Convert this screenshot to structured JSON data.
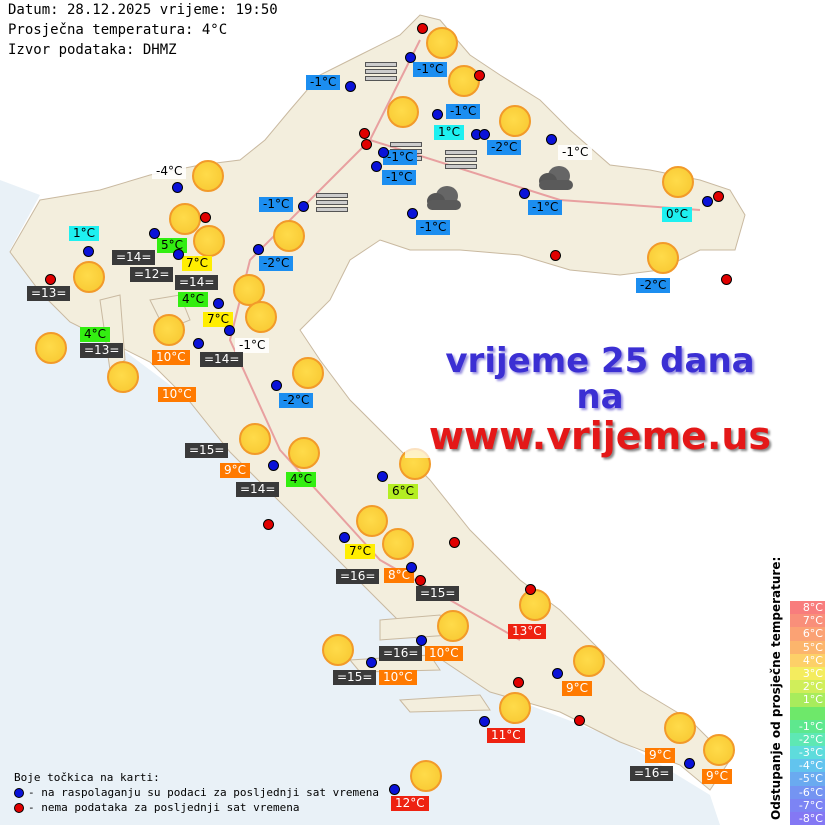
{
  "header": {
    "date_line": "Datum: 28.12.2025 vrijeme: 19:50",
    "avg_line": "Prosječna temperatura: 4°C",
    "source_line": "Izvor podataka: DHMZ"
  },
  "ad": {
    "line1": "vrijeme 25 dana",
    "line2": "na",
    "line3": "www.vrijeme.us"
  },
  "legend": {
    "title": "Boje točkica na karti:",
    "blue": "- na raspolaganju su podaci za posljednji sat vremena",
    "red": "- nema podataka za posljednji sat vremena"
  },
  "scale": {
    "title": "Odstupanje od prosječne temperature:",
    "steps": [
      {
        "label": "8°C",
        "color": "#f87d7d"
      },
      {
        "label": "7°C",
        "color": "#f98f7a"
      },
      {
        "label": "6°C",
        "color": "#fba274"
      },
      {
        "label": "5°C",
        "color": "#fcb56c"
      },
      {
        "label": "4°C",
        "color": "#fdd068"
      },
      {
        "label": "3°C",
        "color": "#f4ec5e"
      },
      {
        "label": "2°C",
        "color": "#d0ee5a"
      },
      {
        "label": "1°C",
        "color": "#a8ec5c"
      },
      {
        "label": "",
        "color": "#6ee86a"
      },
      {
        "label": "-1°C",
        "color": "#5ee88e"
      },
      {
        "label": "-2°C",
        "color": "#5ee8b4"
      },
      {
        "label": "-3°C",
        "color": "#5edcdc"
      },
      {
        "label": "-4°C",
        "color": "#62c4ee"
      },
      {
        "label": "-5°C",
        "color": "#6aaaf0"
      },
      {
        "label": "-6°C",
        "color": "#7494f2"
      },
      {
        "label": "-7°C",
        "color": "#7c84f4"
      },
      {
        "label": "-8°C",
        "color": "#8478f4"
      }
    ]
  },
  "stations": [
    {
      "t": "-1°C",
      "c": "blue"
    },
    {
      "t": "-1°C",
      "c": "blue"
    },
    {
      "t": "-1°C",
      "c": "blue"
    },
    {
      "t": "1°C",
      "c": "cyan"
    },
    {
      "t": "-2°C",
      "c": "blue"
    },
    {
      "t": "-1°C",
      "c": "blue"
    },
    {
      "t": "-1°C",
      "c": "blue"
    },
    {
      "t": "-1°C",
      "c": "plain"
    },
    {
      "t": "-1°C",
      "c": "blue"
    },
    {
      "t": "-1°C",
      "c": "blue"
    },
    {
      "t": "-1°C",
      "c": "blue"
    },
    {
      "t": "0°C",
      "c": "cyan"
    },
    {
      "t": "-2°C",
      "c": "blue"
    },
    {
      "t": "-2°C",
      "c": "blue"
    },
    {
      "t": "-4°C",
      "c": "plain"
    },
    {
      "t": "1°C",
      "c": "cyan"
    },
    {
      "t": "=14=",
      "c": "dark"
    },
    {
      "t": "5°C",
      "c": "green"
    },
    {
      "t": "=12=",
      "c": "dark"
    },
    {
      "t": "7°C",
      "c": "yellow"
    },
    {
      "t": "4°C",
      "c": "green"
    },
    {
      "t": "=14=",
      "c": "dark"
    },
    {
      "t": "=13=",
      "c": "dark"
    },
    {
      "t": "7°C",
      "c": "yellow"
    },
    {
      "t": "-1°C",
      "c": "plain"
    },
    {
      "t": "4°C",
      "c": "green"
    },
    {
      "t": "=13=",
      "c": "dark"
    },
    {
      "t": "10°C",
      "c": "orange"
    },
    {
      "t": "=14=",
      "c": "dark"
    },
    {
      "t": "10°C",
      "c": "orange"
    },
    {
      "t": "-2°C",
      "c": "blue"
    },
    {
      "t": "=15=",
      "c": "dark"
    },
    {
      "t": "9°C",
      "c": "orange"
    },
    {
      "t": "4°C",
      "c": "green"
    },
    {
      "t": "=14=",
      "c": "dark"
    },
    {
      "t": "6°C",
      "c": "lime"
    },
    {
      "t": "7°C",
      "c": "yellow"
    },
    {
      "t": "=16=",
      "c": "dark"
    },
    {
      "t": "8°C",
      "c": "orange"
    },
    {
      "t": "=15=",
      "c": "dark"
    },
    {
      "t": "13°C",
      "c": "red"
    },
    {
      "t": "=16=",
      "c": "dark"
    },
    {
      "t": "10°C",
      "c": "orange"
    },
    {
      "t": "=15=",
      "c": "dark"
    },
    {
      "t": "10°C",
      "c": "orange"
    },
    {
      "t": "9°C",
      "c": "orange"
    },
    {
      "t": "11°C",
      "c": "red"
    },
    {
      "t": "9°C",
      "c": "orange"
    },
    {
      "t": "=16=",
      "c": "dark"
    },
    {
      "t": "9°C",
      "c": "orange"
    },
    {
      "t": "12°C",
      "c": "red"
    }
  ],
  "colors": {
    "available_dot": "#0a12d8",
    "unavailable_dot": "#e00000",
    "label_blue": "#1c8ef0",
    "sun": "#f7c62f"
  }
}
